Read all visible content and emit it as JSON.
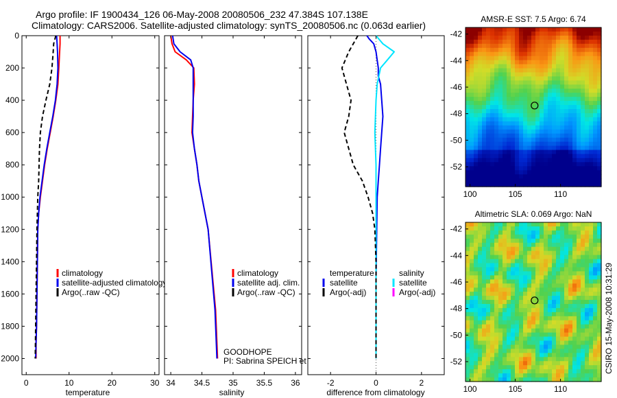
{
  "header": {
    "line1": "Argo profile: IF 1900434_126 06-May-2008 20080506_232 47.384S 107.138E",
    "line2": "Climatology: CARS2006. Satellite-adjusted climatology: synTS_20080506.nc (0.063d earlier)"
  },
  "colors": {
    "climatology": "#ff0000",
    "satellite": "#0000ee",
    "argo": "#000000",
    "salinity_satellite": "#00e5ff",
    "salinity_argo": "#ff00ff"
  },
  "chart_data": [
    {
      "type": "line",
      "xlabel": "temperature",
      "ylabel": "",
      "xlim": [
        -1,
        31
      ],
      "ylim": [
        2100,
        0
      ],
      "xticks": [
        "0",
        "10",
        "20",
        "30"
      ],
      "yticks": [
        "0",
        "200",
        "400",
        "600",
        "800",
        "1000",
        "1200",
        "1400",
        "1600",
        "1800",
        "2000"
      ],
      "legend": [
        "climatology",
        "satellite-adjusted climatology",
        "Argo(..raw -QC)"
      ],
      "legend_placement": "lower-right",
      "series": [
        {
          "name": "climatology",
          "color": "#ff0000",
          "style": "solid",
          "x": [
            7.9,
            7.9,
            7.8,
            7.6,
            7.4,
            6.9,
            6.3,
            5.6,
            4.9,
            4.3,
            3.8,
            3.3,
            2.9,
            2.7,
            2.6,
            2.5,
            2.4,
            2.3,
            2.3
          ],
          "y": [
            0,
            50,
            100,
            200,
            300,
            400,
            500,
            600,
            700,
            800,
            900,
            1000,
            1100,
            1200,
            1400,
            1600,
            1800,
            1900,
            2000
          ]
        },
        {
          "name": "satellite-adjusted climatology",
          "color": "#0000ee",
          "style": "solid",
          "x": [
            7.1,
            7.2,
            7.3,
            7.4,
            7.2,
            6.8,
            6.2,
            5.5,
            4.8,
            4.2,
            3.7,
            3.2,
            2.9,
            2.7,
            2.6,
            2.5,
            2.4,
            2.3,
            2.2
          ],
          "y": [
            0,
            50,
            100,
            200,
            300,
            400,
            500,
            600,
            700,
            800,
            900,
            1000,
            1100,
            1200,
            1400,
            1600,
            1800,
            1900,
            2000
          ]
        },
        {
          "name": "Argo(..raw -QC)",
          "color": "#000000",
          "style": "dashed",
          "x": [
            6.9,
            6.4,
            6.3,
            6.0,
            5.5,
            4.6,
            3.8,
            3.3,
            3.1,
            3.0,
            2.9,
            2.7,
            2.6,
            2.5,
            2.4,
            2.3,
            2.2,
            2.1
          ],
          "y": [
            0,
            50,
            100,
            200,
            300,
            400,
            500,
            600,
            700,
            800,
            900,
            1000,
            1100,
            1200,
            1400,
            1600,
            1800,
            2000
          ]
        }
      ]
    },
    {
      "type": "line",
      "xlabel": "salinity",
      "ylabel": "",
      "xlim": [
        33.9,
        36.1
      ],
      "ylim": [
        2100,
        0
      ],
      "xticks": [
        "34",
        "34.5",
        "35",
        "35.5",
        "36"
      ],
      "legend": [
        "climatology",
        "satellite adj. clim.",
        "Argo(..raw -QC)"
      ],
      "legend_placement": "lower-right",
      "annotations": [
        "GOODHOPE",
        "PI: Sabrina SPEICH et Michel ARHAN"
      ],
      "series": [
        {
          "name": "climatology",
          "color": "#ff0000",
          "style": "solid",
          "x": [
            34.0,
            34.02,
            34.07,
            34.25,
            34.37,
            34.38,
            34.36,
            34.35,
            34.34,
            34.38,
            34.42,
            34.45,
            34.5,
            34.6,
            34.72,
            34.75
          ],
          "y": [
            0,
            50,
            100,
            150,
            200,
            300,
            400,
            500,
            600,
            700,
            800,
            900,
            1000,
            1200,
            1700,
            2000
          ]
        },
        {
          "name": "satellite adj. clim.",
          "color": "#0000ee",
          "style": "solid",
          "x": [
            34.03,
            34.05,
            34.15,
            34.32,
            34.36,
            34.36,
            34.36,
            34.36,
            34.35,
            34.38,
            34.42,
            34.45,
            34.5,
            34.6,
            34.71,
            34.74
          ],
          "y": [
            0,
            50,
            100,
            150,
            200,
            300,
            400,
            500,
            600,
            700,
            800,
            900,
            1000,
            1200,
            1700,
            2000
          ]
        }
      ]
    },
    {
      "type": "line",
      "xlabel": "difference from climatology",
      "ylabel": "",
      "xlim": [
        -3,
        3
      ],
      "ylim": [
        2100,
        0
      ],
      "xticks": [
        "-2",
        "0",
        "2"
      ],
      "legend": [
        "temperature",
        "satellite",
        "Argo(-adj)",
        "salinity",
        "satellite",
        "Argo(-adj)"
      ],
      "legend_placement": "lower",
      "series": [
        {
          "name": "satellite",
          "group": "temperature",
          "color": "#0000ee",
          "style": "solid",
          "x": [
            -0.4,
            -0.3,
            -0.1,
            0.0,
            0.1,
            0.1,
            0.2,
            0.25,
            0.3,
            0.25,
            0.2,
            0.15,
            0.1,
            0.05,
            0.0,
            0.0
          ],
          "y": [
            0,
            20,
            50,
            100,
            200,
            250,
            300,
            400,
            500,
            600,
            700,
            800,
            900,
            1000,
            1500,
            2000
          ]
        },
        {
          "name": "satellite",
          "group": "salinity",
          "color": "#00e5ff",
          "style": "solid",
          "x": [
            0.0,
            0.3,
            0.8,
            0.5,
            0.2,
            0.05,
            0.0,
            -0.05,
            0.0,
            0.0,
            0.0,
            0.0
          ],
          "y": [
            0,
            50,
            100,
            150,
            200,
            300,
            400,
            600,
            800,
            1000,
            1500,
            2000
          ]
        },
        {
          "name": "Argo(-adj)",
          "group": "temperature",
          "color": "#000000",
          "style": "dashed",
          "x": [
            -0.8,
            -1.2,
            -1.5,
            -1.3,
            -1.1,
            -1.2,
            -1.4,
            -1.2,
            -1.0,
            -0.6,
            -0.35,
            -0.15,
            -0.05,
            0.0,
            0.0,
            0.0
          ],
          "y": [
            0,
            100,
            200,
            300,
            400,
            500,
            600,
            700,
            800,
            900,
            1000,
            1100,
            1200,
            1400,
            1700,
            2000
          ]
        }
      ]
    },
    {
      "type": "heatmap",
      "title": "AMSR-E SST: 7.5 Argo: 6.74",
      "xlim": [
        99.5,
        114.5
      ],
      "ylim": [
        -53.5,
        -41.5
      ],
      "xticks": [
        "100",
        "105",
        "110"
      ],
      "yticks": [
        "-42",
        "-44",
        "-46",
        "-48",
        "-50",
        "-52"
      ],
      "marker": {
        "lon": 107.138,
        "lat": -47.384
      }
    },
    {
      "type": "heatmap",
      "title": "Altimetric SLA: 0.069 Argo: NaN",
      "xlim": [
        99.5,
        114.5
      ],
      "ylim": [
        -53.5,
        -41.5
      ],
      "xticks": [
        "100",
        "105",
        "110"
      ],
      "yticks": [
        "-42",
        "-44",
        "-46",
        "-48",
        "-50",
        "-52"
      ],
      "marker": {
        "lon": 107.138,
        "lat": -47.384
      }
    }
  ],
  "footer_stamp": "CSIRO 15-May-2008 10:31:29"
}
